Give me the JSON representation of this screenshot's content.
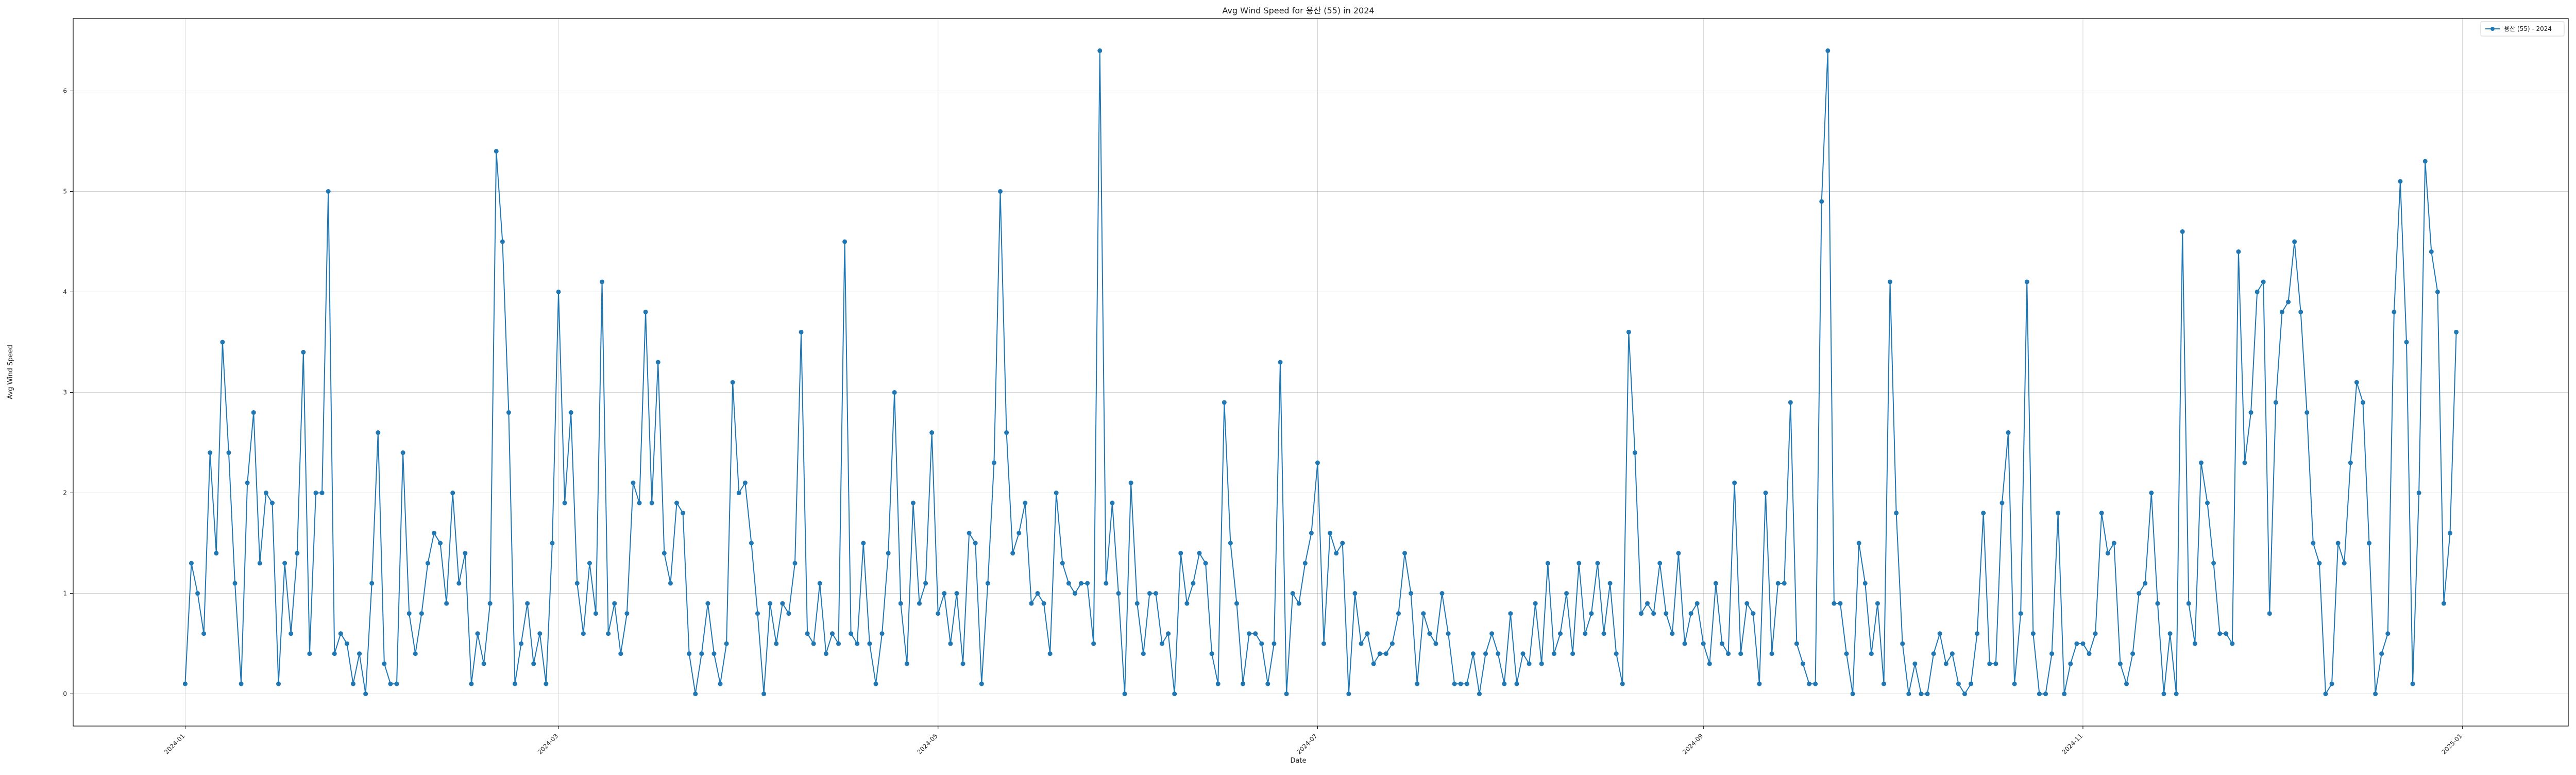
{
  "chart_data": {
    "type": "line",
    "title": "Avg Wind Speed for 용산 (55) in 2024",
    "xlabel": "Date",
    "ylabel": "Avg Wind Speed",
    "x_ticks": [
      "2024-01",
      "2024-03",
      "2024-05",
      "2024-07",
      "2024-09",
      "2024-11",
      "2025-01"
    ],
    "y_ticks": [
      "0",
      "1",
      "2",
      "3",
      "4",
      "5",
      "6"
    ],
    "ylim": [
      -0.32,
      6.72
    ],
    "xlim": [
      "2023-12-14",
      "2025-01-18"
    ],
    "grid": true,
    "legend": "top-right",
    "color": "#1f77b4",
    "series": [
      {
        "name": "용산 (55) - 2024",
        "start_date": "2024-01-01",
        "values": [
          0.1,
          1.3,
          1.0,
          0.6,
          2.4,
          1.4,
          3.5,
          2.4,
          1.1,
          0.1,
          2.1,
          2.8,
          1.3,
          2.0,
          1.9,
          0.1,
          1.3,
          0.6,
          1.4,
          3.4,
          0.4,
          2.0,
          2.0,
          5.0,
          0.4,
          0.6,
          0.5,
          0.1,
          0.4,
          0.0,
          1.1,
          2.6,
          0.3,
          0.1,
          0.1,
          2.4,
          0.8,
          0.4,
          0.8,
          1.3,
          1.6,
          1.5,
          0.9,
          2.0,
          1.1,
          1.4,
          0.1,
          0.6,
          0.3,
          0.9,
          5.4,
          4.5,
          2.8,
          0.1,
          0.5,
          0.9,
          0.3,
          0.6,
          0.1,
          1.5,
          4.0,
          1.9,
          2.8,
          1.1,
          0.6,
          1.3,
          0.8,
          4.1,
          0.6,
          0.9,
          0.4,
          0.8,
          2.1,
          1.9,
          3.8,
          1.9,
          3.3,
          1.4,
          1.1,
          1.9,
          1.8,
          0.4,
          0.0,
          0.4,
          0.9,
          0.4,
          0.1,
          0.5,
          3.1,
          2.0,
          2.1,
          1.5,
          0.8,
          0.0,
          0.9,
          0.5,
          0.9,
          0.8,
          1.3,
          3.6,
          0.6,
          0.5,
          1.1,
          0.4,
          0.6,
          0.5,
          4.5,
          0.6,
          0.5,
          1.5,
          0.5,
          0.1,
          0.6,
          1.4,
          3.0,
          0.9,
          0.3,
          1.9,
          0.9,
          1.1,
          2.6,
          0.8,
          1.0,
          0.5,
          1.0,
          0.3,
          1.6,
          1.5,
          0.1,
          1.1,
          2.3,
          5.0,
          2.6,
          1.4,
          1.6,
          1.9,
          0.9,
          1.0,
          0.9,
          0.4,
          2.0,
          1.3,
          1.1,
          1.0,
          1.1,
          1.1,
          0.5,
          6.4,
          1.1,
          1.9,
          1.0,
          0.0,
          2.1,
          0.9,
          0.4,
          1.0,
          1.0,
          0.5,
          0.6,
          0.0,
          1.4,
          0.9,
          1.1,
          1.4,
          1.3,
          0.4,
          0.1,
          2.9,
          1.5,
          0.9,
          0.1,
          0.6,
          0.6,
          0.5,
          0.1,
          0.5,
          3.3,
          0.0,
          1.0,
          0.9,
          1.3,
          1.6,
          2.3,
          0.5,
          1.6,
          1.4,
          1.5,
          0.0,
          1.0,
          0.5,
          0.6,
          0.3,
          0.4,
          0.4,
          0.5,
          0.8,
          1.4,
          1.0,
          0.1,
          0.8,
          0.6,
          0.5,
          1.0,
          0.6,
          0.1,
          0.1,
          0.1,
          0.4,
          0.0,
          0.4,
          0.6,
          0.4,
          0.1,
          0.8,
          0.1,
          0.4,
          0.3,
          0.9,
          0.3,
          1.3,
          0.4,
          0.6,
          1.0,
          0.4,
          1.3,
          0.6,
          0.8,
          1.3,
          0.6,
          1.1,
          0.4,
          0.1,
          3.6,
          2.4,
          0.8,
          0.9,
          0.8,
          1.3,
          0.8,
          0.6,
          1.4,
          0.5,
          0.8,
          0.9,
          0.5,
          0.3,
          1.1,
          0.5,
          0.4,
          2.1,
          0.4,
          0.9,
          0.8,
          0.1,
          2.0,
          0.4,
          1.1,
          1.1,
          2.9,
          0.5,
          0.3,
          0.1,
          0.1,
          4.9,
          6.4,
          0.9,
          0.9,
          0.4,
          0.0,
          1.5,
          1.1,
          0.4,
          0.9,
          0.1,
          4.1,
          1.8,
          0.5,
          0.0,
          0.3,
          0.0,
          0.0,
          0.4,
          0.6,
          0.3,
          0.4,
          0.1,
          0.0,
          0.1,
          0.6,
          1.8,
          0.3,
          0.3,
          1.9,
          2.6,
          0.1,
          0.8,
          4.1,
          0.6,
          0.0,
          0.0,
          0.4,
          1.8,
          0.0,
          0.3,
          0.5,
          0.5,
          0.4,
          0.6,
          1.8,
          1.4,
          1.5,
          0.3,
          0.1,
          0.4,
          1.0,
          1.1,
          2.0,
          0.9,
          0.0,
          0.6,
          0.0,
          4.6,
          0.9,
          0.5,
          2.3,
          1.9,
          1.3,
          0.6,
          0.6,
          0.5,
          4.4,
          2.3,
          2.8,
          4.0,
          4.1,
          0.8,
          2.9,
          3.8,
          3.9,
          4.5,
          3.8,
          2.8,
          1.5,
          1.3,
          0.0,
          0.1,
          1.5,
          1.3,
          2.3,
          3.1,
          2.9,
          1.5,
          0.0,
          0.4,
          0.6,
          3.8,
          5.1,
          3.5,
          0.1,
          2.0,
          5.3,
          4.4,
          4.0,
          0.9,
          1.6,
          3.6
        ]
      }
    ]
  }
}
